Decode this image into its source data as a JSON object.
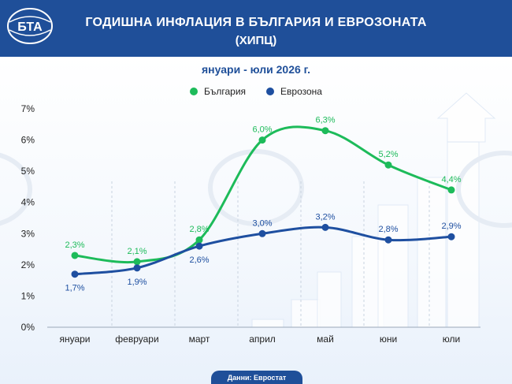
{
  "header": {
    "logo_text": "БТА",
    "title_line1": "ГОДИШНА ИНФЛАЦИЯ В БЪЛГАРИЯ И ЕВРОЗОНАТА",
    "title_line2": "(ХИПЦ)"
  },
  "colors": {
    "header_bg": "#1f4f99",
    "bulgaria": "#1dbb5a",
    "eurozone": "#1e4fa0"
  },
  "footer": {
    "source": "Данни: Евростат"
  },
  "chart_data": {
    "type": "line",
    "title": "",
    "subtitle": "януари - юли 2026 г.",
    "categories": [
      "януари",
      "февруари",
      "март",
      "април",
      "май",
      "юни",
      "юли"
    ],
    "y_ticks": [
      "0%",
      "1%",
      "2%",
      "3%",
      "4%",
      "5%",
      "6%",
      "7%"
    ],
    "ylim": [
      0,
      7
    ],
    "legend_position": "top-center",
    "series": [
      {
        "name": "България",
        "color": "#1dbb5a",
        "values": [
          2.3,
          2.1,
          2.8,
          6.0,
          6.3,
          5.2,
          4.4
        ],
        "labels": [
          "2,3%",
          "2,1%",
          "2,8%",
          "6,0%",
          "6,3%",
          "5,2%",
          "4,4%"
        ]
      },
      {
        "name": "Еврозона",
        "color": "#1e4fa0",
        "values": [
          1.7,
          1.9,
          2.6,
          3.0,
          3.2,
          2.8,
          2.9
        ],
        "labels": [
          "1,7%",
          "1,9%",
          "2,6%",
          "3,0%",
          "3,2%",
          "2,8%",
          "2,9%"
        ]
      }
    ]
  }
}
